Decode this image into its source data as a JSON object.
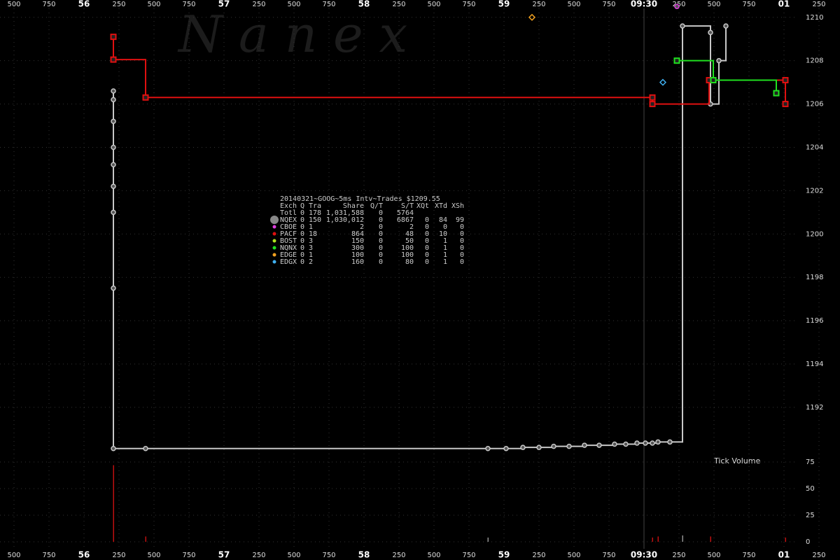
{
  "chart_data": {
    "type": "step",
    "title": "20140321~GOOG~5ms Intv~Trades $1209.55",
    "watermark": "N a n e x",
    "grid": true,
    "xlim": [
      55.4,
      61.4
    ],
    "xticks": [
      {
        "value": 55.5,
        "label": "500"
      },
      {
        "value": 55.75,
        "label": "750"
      },
      {
        "value": 56,
        "label": "56"
      },
      {
        "value": 56.25,
        "label": "250"
      },
      {
        "value": 56.5,
        "label": "500"
      },
      {
        "value": 56.75,
        "label": "750"
      },
      {
        "value": 57,
        "label": "57"
      },
      {
        "value": 57.25,
        "label": "250"
      },
      {
        "value": 57.5,
        "label": "500"
      },
      {
        "value": 57.75,
        "label": "750"
      },
      {
        "value": 58,
        "label": "58"
      },
      {
        "value": 58.25,
        "label": "250"
      },
      {
        "value": 58.5,
        "label": "500"
      },
      {
        "value": 58.75,
        "label": "750"
      },
      {
        "value": 59,
        "label": "59"
      },
      {
        "value": 59.25,
        "label": "250"
      },
      {
        "value": 59.5,
        "label": "500"
      },
      {
        "value": 59.75,
        "label": "750"
      },
      {
        "value": 60,
        "label": "09:30"
      },
      {
        "value": 60.25,
        "label": "250"
      },
      {
        "value": 60.5,
        "label": "500"
      },
      {
        "value": 60.75,
        "label": "750"
      },
      {
        "value": 61,
        "label": "01"
      },
      {
        "value": 61.25,
        "label": "250"
      }
    ],
    "ylim": [
      1189.8,
      1210.8
    ],
    "yticks": [
      1192,
      1194,
      1196,
      1198,
      1200,
      1202,
      1204,
      1206,
      1208,
      1210
    ],
    "table": {
      "header": [
        "Exch",
        "Q",
        "Tra",
        "Share",
        "Q/T",
        "S/T",
        "XQt",
        "XTd",
        "XSh"
      ],
      "total": [
        "Totl",
        "0",
        "178",
        "1,031,588",
        "0",
        "5764"
      ]
    },
    "series": [
      {
        "name": "NQEX",
        "color": "#c8c8c8",
        "marker": "circle",
        "line": true,
        "stats": [
          "0",
          "150",
          "1,030,012",
          "0",
          "6867",
          "0",
          "84",
          "99"
        ],
        "x": [
          56.21,
          56.21,
          56.21,
          56.21,
          56.21,
          56.21,
          56.21,
          56.21,
          56.21,
          56.44,
          58.885,
          59.015,
          59.135,
          59.25,
          59.355,
          59.465,
          59.575,
          59.68,
          59.79,
          59.87,
          59.95,
          60.01,
          60.06,
          60.1,
          60.185,
          60.275,
          60.475,
          60.475,
          60.535,
          60.585
        ],
        "values": [
          1206.6,
          1206.2,
          1205.2,
          1204.0,
          1203.2,
          1202.2,
          1201.0,
          1197.5,
          1190.1,
          1190.1,
          1190.1,
          1190.1,
          1190.15,
          1190.15,
          1190.2,
          1190.2,
          1190.25,
          1190.25,
          1190.3,
          1190.3,
          1190.35,
          1190.35,
          1190.35,
          1190.4,
          1190.4,
          1209.6,
          1209.3,
          1206.0,
          1208.0,
          1209.6
        ]
      },
      {
        "name": "CBOE",
        "color": "#e040e0",
        "marker": "circle",
        "line": false,
        "stats": [
          "0",
          "1",
          "2",
          "0",
          "2",
          "0",
          "0",
          "0"
        ],
        "x": [
          60.235
        ],
        "values": [
          1210.5
        ]
      },
      {
        "name": "PACF",
        "color": "#e01010",
        "marker": "square",
        "line": true,
        "stats": [
          "0",
          "18",
          "864",
          "0",
          "48",
          "0",
          "10",
          "0"
        ],
        "x": [
          56.21,
          56.21,
          56.44,
          60.06,
          60.06,
          60.465,
          61.01,
          61.01
        ],
        "values": [
          1209.1,
          1208.05,
          1206.3,
          1206.3,
          1206.0,
          1207.1,
          1207.1,
          1206.0
        ]
      },
      {
        "name": "BOST",
        "color": "#b0e020",
        "marker": "circle",
        "line": false,
        "stats": [
          "0",
          "3",
          "150",
          "0",
          "50",
          "0",
          "1",
          "0"
        ],
        "x": [],
        "values": []
      },
      {
        "name": "NQNX",
        "color": "#20e020",
        "marker": "square",
        "line": true,
        "stats": [
          "0",
          "3",
          "300",
          "0",
          "100",
          "0",
          "1",
          "0"
        ],
        "x": [
          60.235,
          60.495,
          60.945
        ],
        "values": [
          1208.0,
          1207.1,
          1206.5
        ]
      },
      {
        "name": "EDGE",
        "color": "#f0a020",
        "marker": "diamond",
        "line": false,
        "stats": [
          "0",
          "1",
          "100",
          "0",
          "100",
          "0",
          "1",
          "0"
        ],
        "x": [
          59.2
        ],
        "values": [
          1210.0
        ]
      },
      {
        "name": "EDGX",
        "color": "#40b0f0",
        "marker": "diamond",
        "line": false,
        "stats": [
          "0",
          "2",
          "160",
          "0",
          "80",
          "0",
          "1",
          "0"
        ],
        "x": [
          60.135
        ],
        "values": [
          1207.0
        ]
      }
    ],
    "volume": {
      "title": "Tick Volume",
      "ylim": [
        0,
        75
      ],
      "yticks": [
        0,
        25,
        50,
        75
      ],
      "x": [
        56.21,
        56.44,
        58.885,
        60.06,
        60.1,
        60.275,
        60.475,
        61.01
      ],
      "values": [
        72,
        5,
        4,
        4,
        5,
        6,
        5,
        4
      ],
      "colors": [
        "#c01010",
        "#c01010",
        "#909090",
        "#c01010",
        "#c01010",
        "#909090",
        "#c01010",
        "#c01010"
      ]
    }
  }
}
